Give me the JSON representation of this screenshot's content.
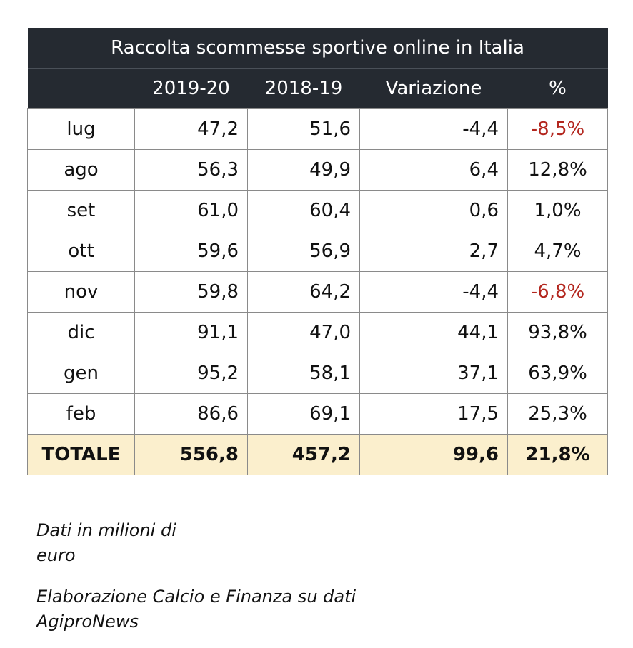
{
  "chart_data": {
    "type": "table",
    "title": "Raccolta scommesse sportive online in Italia",
    "columns": [
      "",
      "2019-20",
      "2018-19",
      "Variazione",
      "%"
    ],
    "rows": [
      {
        "month": "lug",
        "v2019_20": "47,2",
        "v2018_19": "51,6",
        "variazione": "-4,4",
        "pct": "-8,5%",
        "negative": true
      },
      {
        "month": "ago",
        "v2019_20": "56,3",
        "v2018_19": "49,9",
        "variazione": "6,4",
        "pct": "12,8%",
        "negative": false
      },
      {
        "month": "set",
        "v2019_20": "61,0",
        "v2018_19": "60,4",
        "variazione": "0,6",
        "pct": "1,0%",
        "negative": false
      },
      {
        "month": "ott",
        "v2019_20": "59,6",
        "v2018_19": "56,9",
        "variazione": "2,7",
        "pct": "4,7%",
        "negative": false
      },
      {
        "month": "nov",
        "v2019_20": "59,8",
        "v2018_19": "64,2",
        "variazione": "-4,4",
        "pct": "-6,8%",
        "negative": true
      },
      {
        "month": "dic",
        "v2019_20": "91,1",
        "v2018_19": "47,0",
        "variazione": "44,1",
        "pct": "93,8%",
        "negative": false
      },
      {
        "month": "gen",
        "v2019_20": "95,2",
        "v2018_19": "58,1",
        "variazione": "37,1",
        "pct": "63,9%",
        "negative": false
      },
      {
        "month": "feb",
        "v2019_20": "86,6",
        "v2018_19": "69,1",
        "variazione": "17,5",
        "pct": "25,3%",
        "negative": false
      }
    ],
    "total": {
      "label": "TOTALE",
      "v2019_20": "556,8",
      "v2018_19": "457,2",
      "variazione": "99,6",
      "pct": "21,8%"
    }
  },
  "colors": {
    "header_bg": "#252a31",
    "negative": "#b3261e",
    "total_bg": "#fbefcd"
  },
  "notes": {
    "unit_line1": "Dati in milioni di",
    "unit_line2": "euro",
    "source_line1": "Elaborazione Calcio e Finanza su dati",
    "source_line2": "AgiproNews"
  }
}
